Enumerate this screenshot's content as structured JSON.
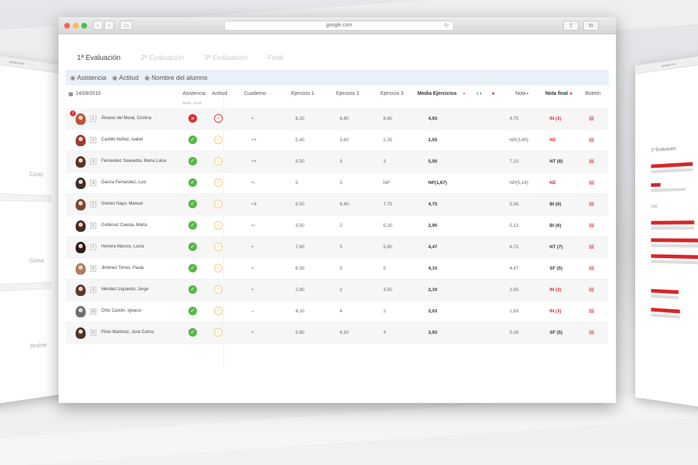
{
  "window": {
    "url": "google.com"
  },
  "tabs": [
    {
      "label": "1ª Evaluación",
      "active": true
    },
    {
      "label": "2ª Evaluación",
      "active": false
    },
    {
      "label": "3ª Evaluación",
      "active": false
    },
    {
      "label": "Final",
      "active": false
    }
  ],
  "filters": {
    "asistencia": "Asistencia",
    "actitud": "Actitud",
    "nombre": "Nombre del alumno"
  },
  "headers": {
    "date": "14/09/2015",
    "asistencia": "Asistencia",
    "actitud": "Actitud",
    "cuaderno": "Cuaderno",
    "ej1": "Ejercicio 1",
    "ej2": "Ejercicio 2",
    "ej3": "Ejercicio 3",
    "media": "Media Ejercicios",
    "arrows": "‹ ›",
    "nota": "Nota",
    "notafinal": "Nota final",
    "boletin": "Boletín",
    "time": "08:54 - 10:40"
  },
  "students": [
    {
      "num": "1",
      "name": "Álvarez del Moral, Cristina",
      "att": "bad",
      "act": "red",
      "cuaderno": "+",
      "e1": "6,20",
      "e2": "6,80",
      "e3": "8,60",
      "media": "4,93",
      "nota": "4,75",
      "final": "IN (3)",
      "final_red": true,
      "avatar": "#c0513a"
    },
    {
      "num": "2",
      "name": "Castillo Núñez, Isabel",
      "att": "ok",
      "act": "yellow",
      "cuaderno": "++",
      "e1": "5,40",
      "e2": "3,60",
      "e3": "2,35",
      "media": "2,55",
      "nota": "NP(3,40)",
      "final": "NE",
      "final_red": true,
      "avatar": "#9c3b2e"
    },
    {
      "num": "3",
      "name": "Fernández Saavedra, María Luisa",
      "att": "ok",
      "act": "yellow",
      "cuaderno": "++",
      "e1": "8,50",
      "e2": "3",
      "e3": "3",
      "media": "5,50",
      "nota": "7,13",
      "final": "NT (8)",
      "final_red": false,
      "avatar": "#5a3326"
    },
    {
      "num": "4",
      "name": "García Fernández, Luis",
      "att": "ok",
      "act": "yellow",
      "cuaderno": "+-",
      "e1": "5",
      "e2": "3",
      "e3": "NP",
      "media": "NP(1,67)",
      "nota": "NP(5,19)",
      "final": "NE",
      "final_red": true,
      "avatar": "#3c2f2a"
    },
    {
      "num": "5",
      "name": "Gómez Nayo, Manuel",
      "att": "ok",
      "act": "yellow",
      "cuaderno": "+3",
      "e1": "6,50",
      "e2": "6,80",
      "e3": "7,75",
      "media": "4,75",
      "nota": "5,56",
      "final": "BI (6)",
      "final_red": false,
      "avatar": "#7a4a34"
    },
    {
      "num": "6",
      "name": "Gutiérrez Cuesta, Marta",
      "att": "ok",
      "act": "yellow",
      "cuaderno": "+-",
      "e1": "3,50",
      "e2": "2",
      "e3": "5,20",
      "media": "2,90",
      "nota": "5,13",
      "final": "BI (6)",
      "final_red": false,
      "avatar": "#4a2b22"
    },
    {
      "num": "7",
      "name": "Herrera Marcos, Lucía",
      "att": "ok",
      "act": "yellow",
      "cuaderno": "+",
      "e1": "7,60",
      "e2": "5",
      "e3": "5,80",
      "media": "4,47",
      "nota": "6,72",
      "final": "NT (7)",
      "final_red": false,
      "avatar": "#2d1e1a"
    },
    {
      "num": "8",
      "name": "Jiménez Torres, Paula",
      "att": "ok",
      "act": "yellow",
      "cuaderno": "+",
      "e1": "6,30",
      "e2": "5",
      "e3": "5",
      "media": "4,10",
      "nota": "4,47",
      "final": "SF (5)",
      "final_red": false,
      "avatar": "#b07b5e"
    },
    {
      "num": "9",
      "name": "Méndez Izquierdo, Jorge",
      "att": "ok",
      "act": "yellow",
      "cuaderno": "+",
      "e1": "2,80",
      "e2": "2",
      "e3": "3,50",
      "media": "2,10",
      "nota": "2,93",
      "final": "IN (3)",
      "final_red": true,
      "avatar": "#5b3a2c"
    },
    {
      "num": "10",
      "name": "Ortiz Castón, Ignacio",
      "att": "ok",
      "act": "yellow",
      "cuaderno": "--",
      "e1": "4,10",
      "e2": "4",
      "e3": "2",
      "media": "2,03",
      "nota": "1,83",
      "final": "IN (3)",
      "final_red": true,
      "avatar": "#6a6f78"
    },
    {
      "num": "11",
      "name": "Pinto Martínez, José Carlos",
      "att": "ok",
      "act": "yellow",
      "cuaderno": "+",
      "e1": "5,80",
      "e2": "6,50",
      "e3": "4",
      "media": "3,93",
      "nota": "5,09",
      "final": "SF (5)",
      "final_red": false,
      "avatar": "#4a3328"
    }
  ],
  "side_left": {
    "url": "google.com",
    "names": [
      "Castil",
      "Góme",
      "Jiméne"
    ]
  },
  "side_right": {
    "url": "google.com",
    "title": "1ª Evaluación"
  },
  "colors": {
    "accent_red": "#e12c2e",
    "ok_green": "#57b847",
    "face_yellow": "#f3c97b",
    "filterbar": "#eaf0f8"
  }
}
